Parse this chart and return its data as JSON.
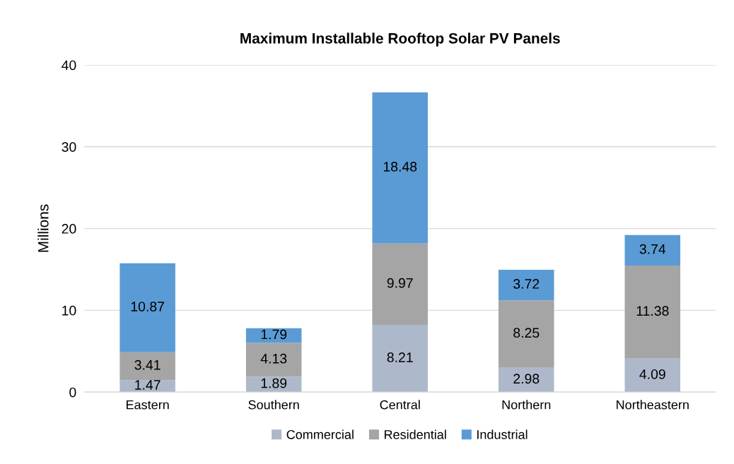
{
  "chart_data": {
    "type": "bar",
    "title": "Maximum Installable Rooftop Solar PV Panels",
    "ylabel": "Millions",
    "categories": [
      "Eastern",
      "Southern",
      "Central",
      "Northern",
      "Northeastern"
    ],
    "stacked": true,
    "data_labels": true,
    "grid": "y",
    "legend": "bottom",
    "ylim": [
      0,
      40
    ],
    "yticks": [
      0,
      10,
      20,
      30,
      40
    ],
    "series": [
      {
        "name": "Commercial",
        "color": "#adb9ca",
        "values": [
          1.47,
          1.89,
          8.21,
          2.98,
          4.09
        ]
      },
      {
        "name": "Residential",
        "color": "#a5a5a5",
        "values": [
          3.41,
          4.13,
          9.97,
          8.25,
          11.38
        ]
      },
      {
        "name": "Industrial",
        "color": "#5b9bd5",
        "values": [
          10.87,
          1.79,
          18.48,
          3.72,
          3.74
        ]
      }
    ]
  }
}
